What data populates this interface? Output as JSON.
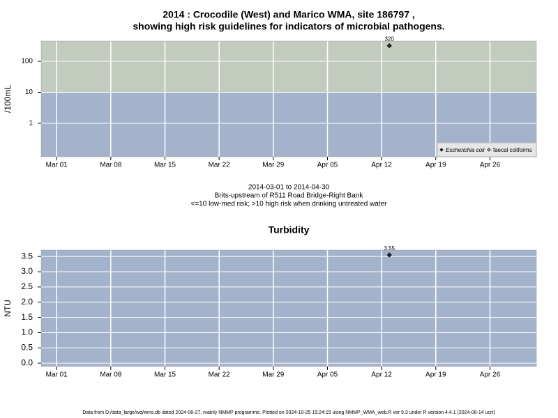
{
  "chart_data": [
    {
      "type": "scatter",
      "title": [
        "2014 : Crocodile (West) and Marico WMA, site 186797 ,",
        "showing high risk guidelines for indicators of microbial pathogens."
      ],
      "subtitle": [
        "2014-03-01 to 2014-04-30",
        "Brits-upstream of R511 Road Bridge-Right Bank",
        "<=10 low-med risk; >10 high risk when drinking untreated water"
      ],
      "y_label": "/100mL",
      "log_y": true,
      "ylim": [
        0.083,
        450
      ],
      "yticks": [
        1,
        10,
        100
      ],
      "xlim": [
        "Feb 27",
        "May 02"
      ],
      "xticks": [
        "Mar 01",
        "Mar 08",
        "Mar 15",
        "Mar 22",
        "Mar 29",
        "Apr 05",
        "Apr 12",
        "Apr 19",
        "Apr 26"
      ],
      "grid": true,
      "guideline": 10,
      "band_colors": {
        "above": "#c3cbbf",
        "below": "#a3b3cc"
      },
      "legend": "bottom right",
      "series": [
        {
          "name": "Escherichia coli",
          "color": "#222222",
          "marker": "filled",
          "x": [
            "Apr 13"
          ],
          "values": [
            320
          ]
        },
        {
          "name": "faecal coliforms",
          "color": "#222222",
          "marker": "open",
          "x": [],
          "values": []
        }
      ]
    },
    {
      "type": "scatter",
      "title": [
        "Turbidity"
      ],
      "y_label": "NTU",
      "log_y": false,
      "ylim": [
        -0.11,
        3.71
      ],
      "yticks": [
        {
          "value": 0,
          "label": "0.0"
        },
        {
          "value": 0.5,
          "label": "0.5"
        },
        {
          "value": 1,
          "label": "1.0"
        },
        {
          "value": 1.5,
          "label": "1.5"
        },
        {
          "value": 2,
          "label": "2.0"
        },
        {
          "value": 2.5,
          "label": "2.5"
        },
        {
          "value": 3,
          "label": "3.0"
        },
        {
          "value": 3.5,
          "label": "3.5"
        }
      ],
      "xlim": [
        "Feb 27",
        "May 02"
      ],
      "xticks": [
        "Mar 01",
        "Mar 08",
        "Mar 15",
        "Mar 22",
        "Mar 29",
        "Apr 05",
        "Apr 12",
        "Apr 19",
        "Apr 26"
      ],
      "grid": true,
      "band_colors": {
        "below": "#a3b3cc"
      },
      "series": [
        {
          "name": "Turbidity",
          "color": "#222222",
          "marker": "filled",
          "x": [
            "Apr 13"
          ],
          "values": [
            3.55
          ]
        }
      ]
    }
  ],
  "footer": "Data from D:/data_large/wq/wms.db dated 2024-08-27, mainly NMMP programme. Plotted on 2024-10-25 15:24:15 using NMMP_WMA_web.R ver 9.3 under R version 4.4.1 (2024-06-14 ucrt)"
}
